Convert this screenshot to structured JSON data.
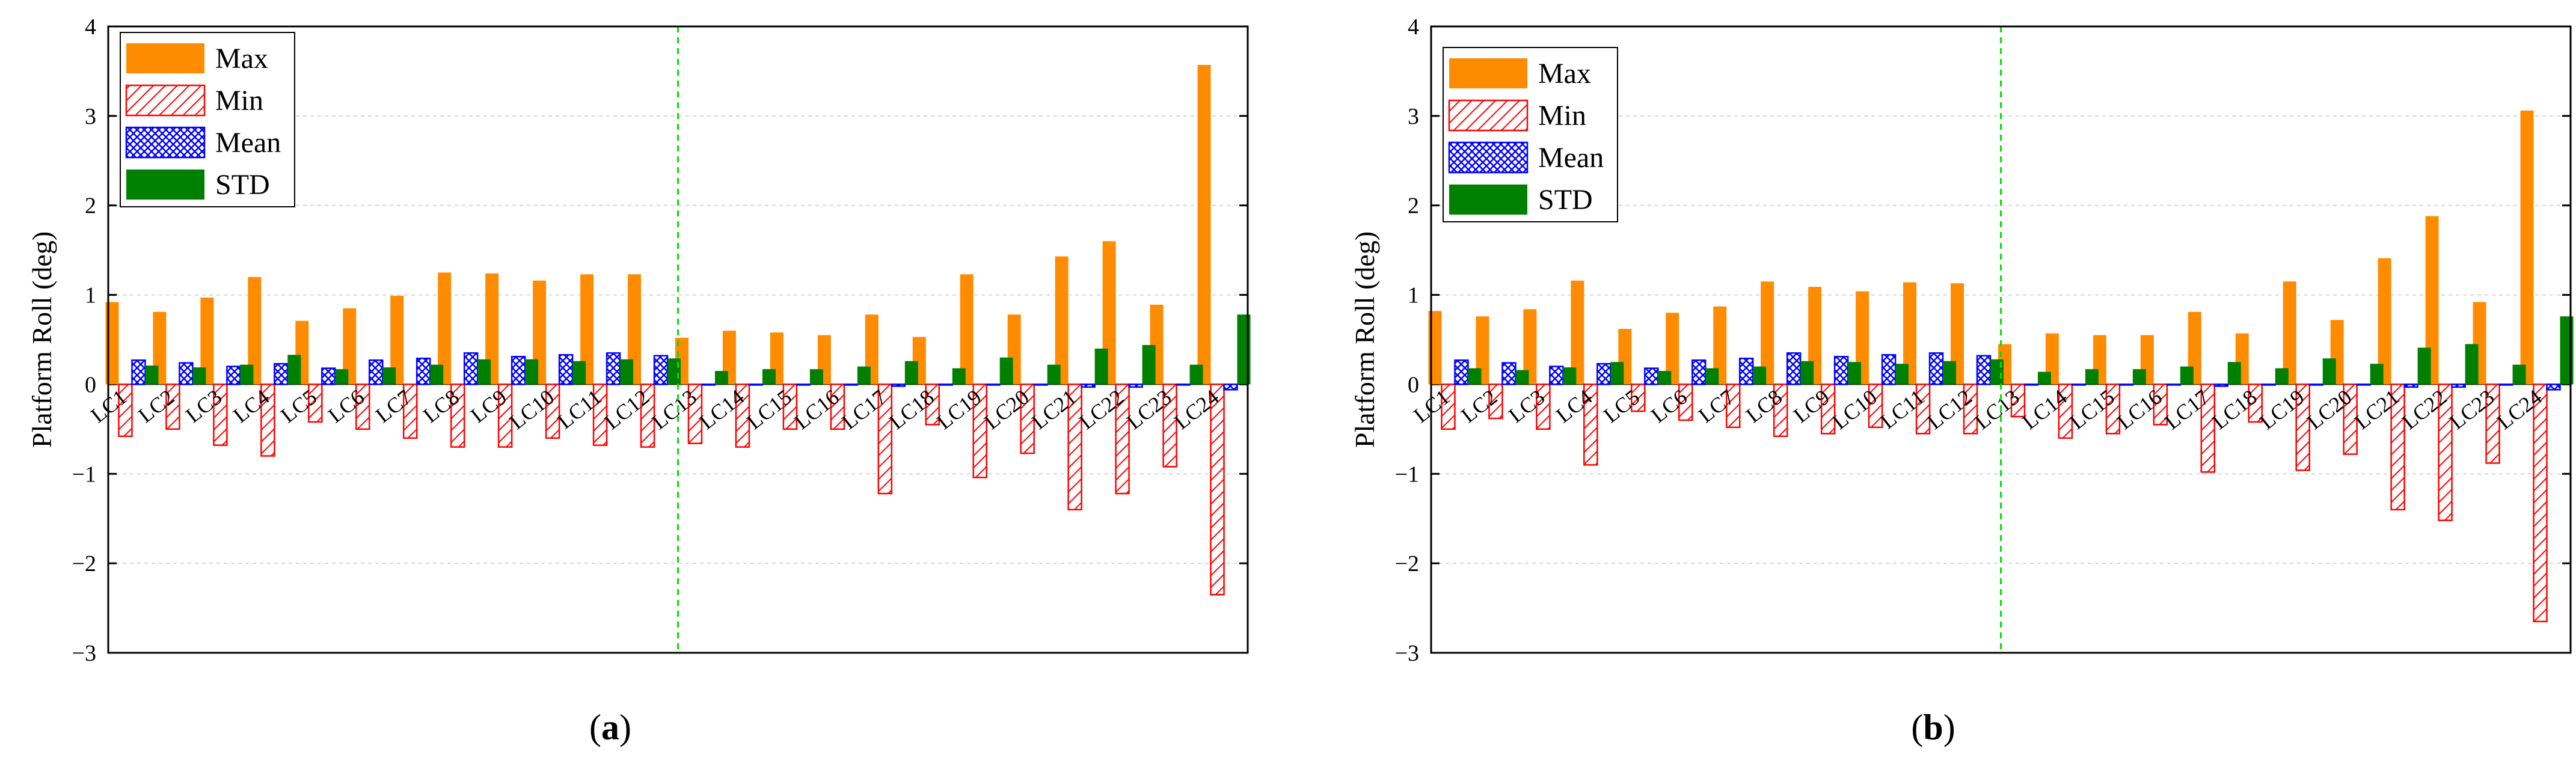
{
  "colors": {
    "max": "#ff8c00",
    "min": "#ff0000",
    "mean": "#0000ff",
    "std": "#008000",
    "divider": "#00e000",
    "grid": "#d8d8d8"
  },
  "chart_data": [
    {
      "type": "bar",
      "panel": "a",
      "caption": {
        "open": "(",
        "letter": "a",
        "close": ")"
      },
      "ylabel": "Platform Roll (deg)",
      "xlabel": "",
      "ylim": [
        -3,
        4
      ],
      "yticks": [
        "−3",
        "−2",
        "−1",
        "0",
        "1",
        "2",
        "3",
        "4"
      ],
      "grid": true,
      "divider_after_category": "LC12",
      "legend": {
        "position": "top-left",
        "entries": [
          "Max",
          "Min",
          "Mean",
          "STD"
        ]
      },
      "categories": [
        "LC1",
        "LC2",
        "LC3",
        "LC4",
        "LC5",
        "LC6",
        "LC7",
        "LC8",
        "LC9",
        "LC10",
        "LC11",
        "LC12",
        "LC13",
        "LC14",
        "LC15",
        "LC16",
        "LC17",
        "LC18",
        "LC19",
        "LC20",
        "LC21",
        "LC22",
        "LC23",
        "LC24"
      ],
      "series": [
        {
          "name": "Max",
          "values": [
            0.92,
            0.81,
            0.97,
            1.2,
            0.71,
            0.85,
            0.99,
            1.25,
            1.24,
            1.16,
            1.23,
            1.23,
            0.52,
            0.6,
            0.58,
            0.55,
            0.78,
            0.53,
            1.23,
            0.78,
            1.43,
            1.6,
            0.89,
            3.57
          ]
        },
        {
          "name": "Min",
          "values": [
            -0.58,
            -0.5,
            -0.68,
            -0.8,
            -0.42,
            -0.5,
            -0.6,
            -0.7,
            -0.7,
            -0.6,
            -0.68,
            -0.7,
            -0.66,
            -0.7,
            -0.5,
            -0.5,
            -1.22,
            -0.45,
            -1.04,
            -0.77,
            -1.4,
            -1.22,
            -0.92,
            -2.35
          ]
        },
        {
          "name": "Mean",
          "values": [
            0.27,
            0.24,
            0.2,
            0.23,
            0.18,
            0.27,
            0.29,
            0.35,
            0.31,
            0.33,
            0.35,
            0.32,
            0.0,
            0.0,
            0.0,
            0.0,
            -0.02,
            0.0,
            0.0,
            0.0,
            -0.03,
            -0.03,
            0.0,
            -0.06
          ]
        },
        {
          "name": "STD",
          "values": [
            0.21,
            0.19,
            0.22,
            0.33,
            0.17,
            0.19,
            0.22,
            0.28,
            0.28,
            0.26,
            0.28,
            0.29,
            0.15,
            0.17,
            0.17,
            0.2,
            0.26,
            0.18,
            0.3,
            0.22,
            0.4,
            0.44,
            0.22,
            0.78
          ]
        }
      ]
    },
    {
      "type": "bar",
      "panel": "b",
      "caption": {
        "open": "(",
        "letter": "b",
        "close": ")"
      },
      "ylabel": "Platform Roll (deg)",
      "xlabel": "",
      "ylim": [
        -3,
        4
      ],
      "yticks": [
        "−3",
        "−2",
        "−1",
        "0",
        "1",
        "2",
        "3",
        "4"
      ],
      "grid": true,
      "divider_after_category": "LC12",
      "legend": {
        "position": "top-left",
        "entries": [
          "Max",
          "Min",
          "Mean",
          "STD"
        ]
      },
      "categories": [
        "LC1",
        "LC2",
        "LC3",
        "LC4",
        "LC5",
        "LC6",
        "LC7",
        "LC8",
        "LC9",
        "LC10",
        "LC11",
        "LC12",
        "LC13",
        "LC14",
        "LC15",
        "LC16",
        "LC17",
        "LC18",
        "LC19",
        "LC20",
        "LC21",
        "LC22",
        "LC23",
        "LC24"
      ],
      "series": [
        {
          "name": "Max",
          "values": [
            0.82,
            0.76,
            0.84,
            1.16,
            0.62,
            0.8,
            0.87,
            1.15,
            1.09,
            1.04,
            1.14,
            1.13,
            0.45,
            0.57,
            0.55,
            0.55,
            0.81,
            0.57,
            1.15,
            0.72,
            1.41,
            1.88,
            0.92,
            3.06
          ]
        },
        {
          "name": "Min",
          "values": [
            -0.5,
            -0.38,
            -0.5,
            -0.9,
            -0.3,
            -0.4,
            -0.48,
            -0.58,
            -0.55,
            -0.48,
            -0.55,
            -0.55,
            -0.36,
            -0.6,
            -0.55,
            -0.45,
            -0.98,
            -0.42,
            -0.96,
            -0.78,
            -1.4,
            -1.52,
            -0.88,
            -2.65
          ]
        },
        {
          "name": "Mean",
          "values": [
            0.27,
            0.24,
            0.2,
            0.23,
            0.18,
            0.27,
            0.29,
            0.35,
            0.31,
            0.33,
            0.35,
            0.32,
            0.0,
            0.0,
            0.0,
            0.0,
            -0.02,
            0.0,
            0.0,
            0.0,
            -0.03,
            -0.03,
            0.0,
            -0.06
          ]
        },
        {
          "name": "STD",
          "values": [
            0.18,
            0.16,
            0.19,
            0.25,
            0.15,
            0.18,
            0.2,
            0.26,
            0.25,
            0.23,
            0.26,
            0.28,
            0.14,
            0.17,
            0.17,
            0.2,
            0.25,
            0.18,
            0.29,
            0.23,
            0.41,
            0.45,
            0.22,
            0.76
          ]
        }
      ]
    }
  ]
}
